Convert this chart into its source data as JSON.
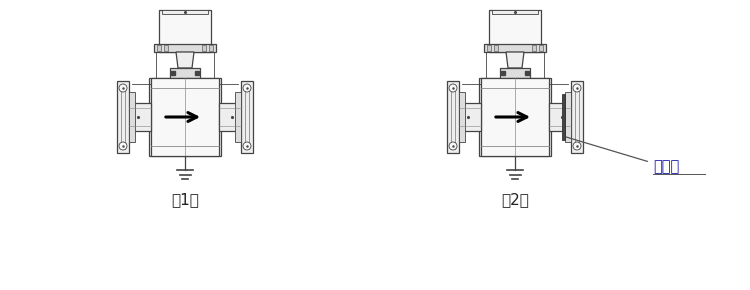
{
  "bg_color": "#ffffff",
  "line_color": "#888888",
  "dark_color": "#444444",
  "label1": "（1）",
  "label2": "（2）",
  "annotation": "接地环",
  "fig_width": 7.5,
  "fig_height": 2.9,
  "dpi": 100
}
